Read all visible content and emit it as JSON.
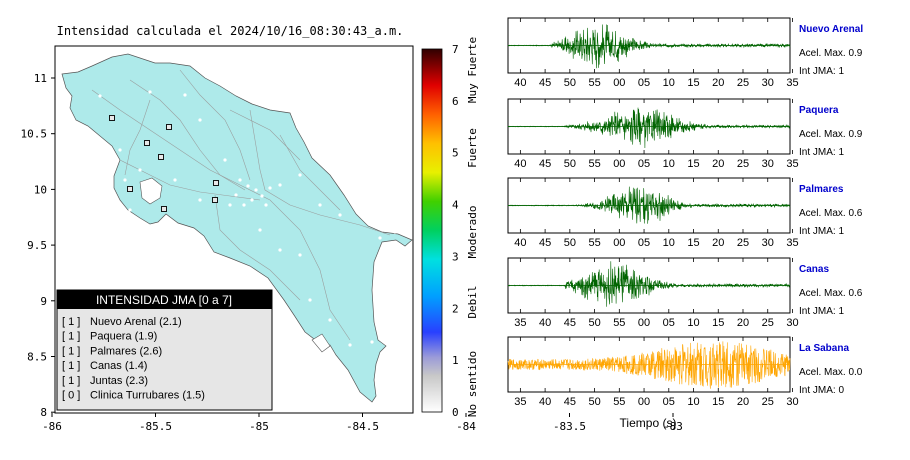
{
  "map": {
    "title": "Intensidad calculada el 2024/10/16_08:30:43_a.m.",
    "x_ticks": [
      "-86",
      "-85.5",
      "-85",
      "-84.5",
      "-84",
      "-83.5",
      "-83"
    ],
    "y_ticks": [
      "11",
      "10.5",
      "10",
      "9.5",
      "9",
      "8.5",
      "8"
    ],
    "land_color": "#aeeaea",
    "station_markers": 8,
    "legend": {
      "title": "INTENSIDAD JMA [0 a 7]",
      "items": [
        {
          "level": "1",
          "text": "Nuevo Arenal (2.1)"
        },
        {
          "level": "1",
          "text": "Paquera (1.9)"
        },
        {
          "level": "1",
          "text": "Palmares (2.6)"
        },
        {
          "level": "1",
          "text": "Canas (1.4)"
        },
        {
          "level": "1",
          "text": "Juntas (2.3)"
        },
        {
          "level": "0",
          "text": "Clinica Turrubares (1.5)"
        }
      ]
    }
  },
  "colorbar": {
    "ticks": [
      "7",
      "6",
      "5",
      "4",
      "3",
      "2",
      "1",
      "0"
    ],
    "labels": [
      "Muy Fuerte",
      "Fuerte",
      "Moderado",
      "Debil",
      "No sentido"
    ]
  },
  "chart_data": {
    "type": "line",
    "xlabel": "Tiempo (s)",
    "series": [
      {
        "name": "Nuevo Arenal",
        "accel_label": "Acel. Max. 0.9",
        "jma_label": "Int JMA: 1",
        "color": "#006400",
        "name_color": "#0000cc",
        "x_ticks": [
          "40",
          "45",
          "50",
          "55",
          "00",
          "05",
          "10",
          "15",
          "20",
          "25",
          "30",
          "35"
        ],
        "x_start": 37.5,
        "onset": 46,
        "peak_at": 56,
        "amplitude": 1.0,
        "decay": 7
      },
      {
        "name": "Paquera",
        "accel_label": "Acel. Max. 0.9",
        "jma_label": "Int JMA: 1",
        "color": "#006400",
        "name_color": "#0000cc",
        "x_ticks": [
          "40",
          "45",
          "50",
          "55",
          "00",
          "05",
          "10",
          "15",
          "20",
          "25",
          "30",
          "35"
        ],
        "x_start": 37.5,
        "onset": 49,
        "peak_at": 64,
        "amplitude": 0.9,
        "decay": 9
      },
      {
        "name": "Palmares",
        "accel_label": "Acel. Max. 0.6",
        "jma_label": "Int JMA: 1",
        "color": "#006400",
        "name_color": "#0000cc",
        "x_ticks": [
          "40",
          "45",
          "50",
          "55",
          "00",
          "05",
          "10",
          "15",
          "20",
          "25",
          "30",
          "35"
        ],
        "x_start": 37.5,
        "onset": 51,
        "peak_at": 64,
        "amplitude": 0.95,
        "decay": 7
      },
      {
        "name": "Canas",
        "accel_label": "Acel. Max. 0.6",
        "jma_label": "Int JMA: 1",
        "color": "#006400",
        "name_color": "#0000cc",
        "x_ticks": [
          "35",
          "40",
          "45",
          "50",
          "55",
          "00",
          "05",
          "10",
          "15",
          "20",
          "25",
          "30"
        ],
        "x_start": 33.5,
        "onset": 45,
        "peak_at": 55,
        "amplitude": 1.0,
        "decay": 8
      },
      {
        "name": "La Sabana",
        "accel_label": "Acel. Max. 0.0",
        "jma_label": "Int JMA: 0",
        "color": "#ffa500",
        "name_color": "#0000cc",
        "x_ticks": [
          "35",
          "40",
          "45",
          "50",
          "55",
          "00",
          "05",
          "10",
          "15",
          "20",
          "25",
          "30"
        ],
        "x_start": 34.5,
        "onset": 35,
        "peak_at": 76,
        "amplitude": 1.0,
        "decay": 14,
        "noisy": true
      }
    ]
  }
}
